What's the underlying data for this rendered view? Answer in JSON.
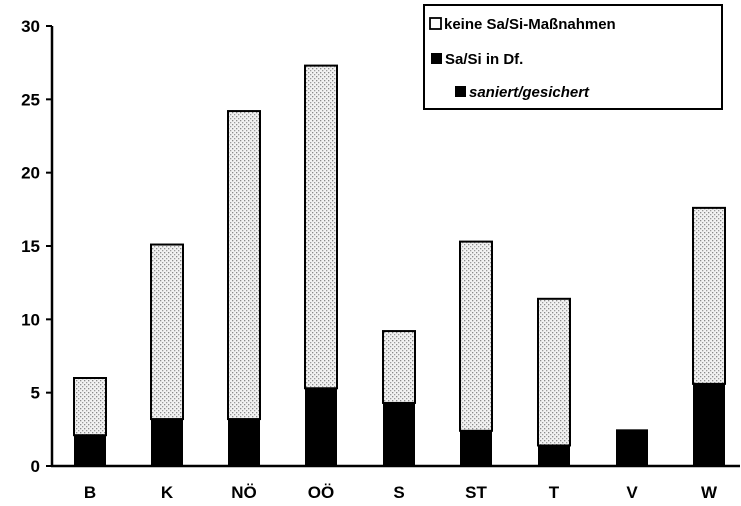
{
  "chart_data": {
    "type": "bar",
    "stacked": true,
    "title": "",
    "xlabel": "",
    "ylabel": "",
    "ylim": [
      0,
      30
    ],
    "yticks": [
      "0",
      "5",
      "10",
      "15",
      "20",
      "25",
      "30"
    ],
    "grid": false,
    "legend_position": "top-right",
    "categories": [
      "B",
      "K",
      "NÖ",
      "OÖ",
      "S",
      "ST",
      "T",
      "V",
      "W"
    ],
    "series": [
      {
        "name": "saniert/gesichert",
        "values": [
          0,
          0,
          0,
          0,
          0,
          0,
          0,
          0,
          0
        ],
        "color": "#000000",
        "pattern": "solid"
      },
      {
        "name": "Sa/Si in Df.",
        "values": [
          2.1,
          3.2,
          3.2,
          5.3,
          4.3,
          2.4,
          1.4,
          2.5,
          5.6
        ],
        "color": "#000000",
        "pattern": "solid"
      },
      {
        "name": "keine Sa/Si-Maßnahmen",
        "values": [
          3.9,
          11.9,
          21.0,
          22.0,
          4.9,
          12.9,
          10.0,
          0,
          12.0
        ],
        "color": "#dcdcdc",
        "pattern": "dotted"
      }
    ],
    "legend_order": [
      "keine Sa/Si-Maßnahmen",
      "Sa/Si in Df.",
      "saniert/gesichert"
    ]
  }
}
